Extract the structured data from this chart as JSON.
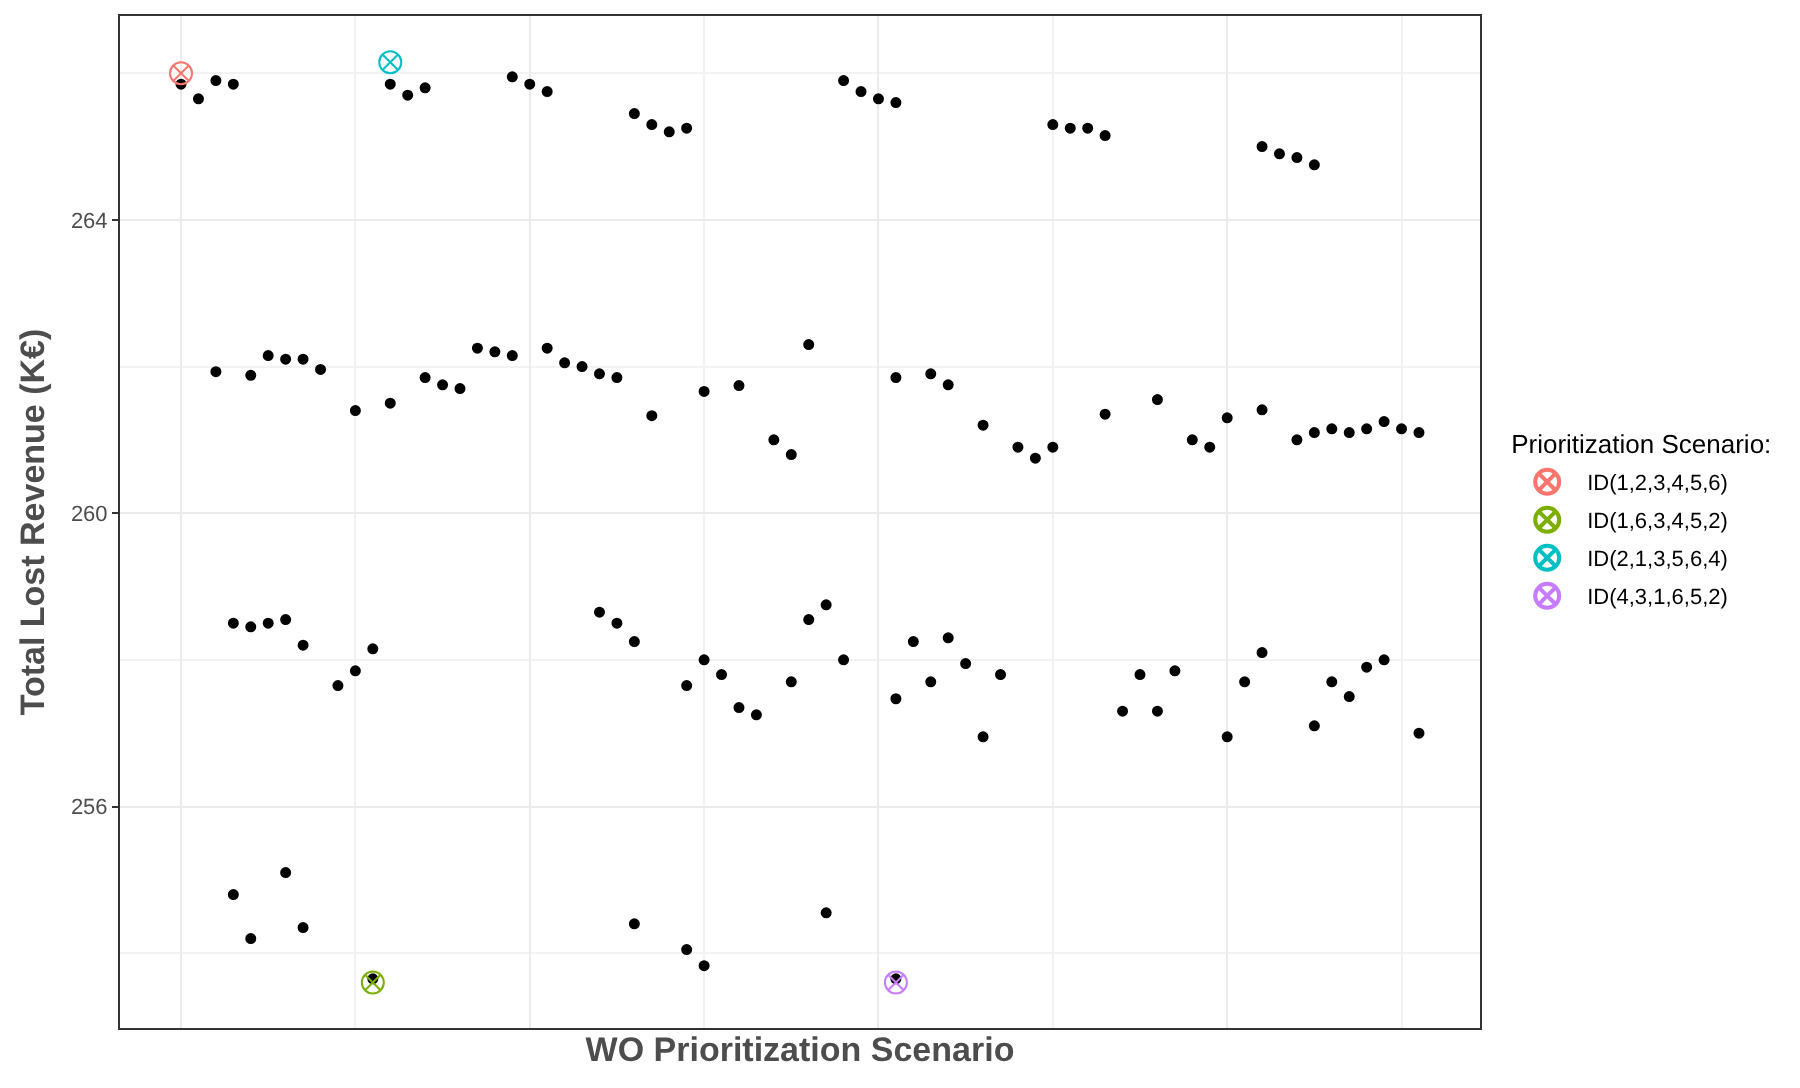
{
  "chart_data": {
    "type": "scatter",
    "xlabel": "WO Prioritization Scenario",
    "ylabel": "Total Lost Revenue (K€)",
    "legend_title": "Prioritization Scenario:",
    "categories": [
      null,
      null,
      null,
      null,
      null,
      null,
      null,
      null,
      null,
      null,
      null,
      null,
      null,
      null,
      null,
      null,
      null,
      null,
      null,
      null,
      null,
      null,
      null,
      null,
      null,
      null,
      null,
      null,
      null,
      null,
      null,
      null,
      null,
      null,
      null,
      null,
      null,
      null,
      null,
      null,
      null,
      null,
      null,
      null,
      null,
      null,
      null,
      null,
      null,
      null,
      null,
      null,
      null,
      null,
      null,
      null,
      null,
      null,
      null,
      null,
      null,
      null,
      null,
      null,
      null,
      null,
      null,
      null,
      null,
      null,
      null,
      null,
      null,
      null,
      null,
      null,
      null,
      null
    ],
    "ylim": [
      252.98,
      266.78
    ],
    "yticks": [
      {
        "value": 254,
        "label": null
      },
      256,
      {
        "value": 258,
        "label": null
      },
      260,
      {
        "value": 262,
        "label": null
      },
      264,
      {
        "value": 266,
        "label": null
      }
    ],
    "grid": true,
    "legend": "right",
    "tick_labels": "y",
    "marker": "circle",
    "series": [
      {
        "color": "#000000",
        "values": [
          null,
          null,
          null,
          265.85,
          265.65,
          265.9,
          265.85,
          null,
          null,
          null,
          null,
          null,
          null,
          null,
          null,
          265.85,
          265.7,
          265.8,
          null,
          null,
          null,
          null,
          265.95,
          265.85,
          265.75,
          null,
          null,
          null,
          null,
          265.45,
          265.3,
          265.2,
          265.25,
          null,
          null,
          null,
          null,
          null,
          null,
          null,
          null,
          265.9,
          265.75,
          265.65,
          265.6,
          null,
          null,
          null,
          null,
          null,
          null,
          null,
          null,
          265.3,
          265.25,
          265.25,
          265.15,
          null,
          null,
          null,
          null,
          null,
          null,
          null,
          null,
          265.0,
          264.9,
          264.85,
          264.75,
          null,
          null,
          null,
          null,
          null,
          null,
          null,
          null,
          null
        ]
      },
      {
        "color": "#000000",
        "values": [
          null,
          null,
          null,
          null,
          null,
          261.93,
          null,
          261.88,
          262.15,
          262.1,
          262.1,
          261.96,
          null,
          261.4,
          null,
          261.5,
          null,
          261.85,
          261.75,
          261.7,
          262.25,
          262.2,
          262.15,
          null,
          262.25,
          262.05,
          262.0,
          261.9,
          261.85,
          null,
          261.33,
          null,
          null,
          261.66,
          null,
          261.74,
          null,
          261.0,
          260.8,
          262.3,
          null,
          null,
          null,
          null,
          261.85,
          null,
          261.9,
          261.75,
          null,
          261.2,
          null,
          260.9,
          260.75,
          260.9,
          null,
          null,
          261.35,
          null,
          null,
          261.55,
          null,
          261.0,
          260.9,
          261.3,
          null,
          261.41,
          null,
          261.0,
          261.1,
          261.15,
          261.1,
          261.15,
          261.25,
          261.15,
          261.1,
          null,
          null,
          null
        ]
      },
      {
        "color": "#000000",
        "values": [
          null,
          null,
          null,
          null,
          null,
          null,
          258.5,
          258.45,
          258.5,
          258.55,
          258.2,
          null,
          257.65,
          257.85,
          258.15,
          null,
          null,
          null,
          null,
          null,
          null,
          null,
          null,
          null,
          null,
          null,
          null,
          258.65,
          258.5,
          258.25,
          null,
          null,
          257.65,
          258.0,
          257.8,
          257.35,
          257.25,
          null,
          257.7,
          258.55,
          258.75,
          258.0,
          null,
          null,
          257.47,
          258.25,
          257.7,
          258.3,
          257.95,
          256.95,
          257.8,
          null,
          null,
          null,
          null,
          null,
          null,
          257.3,
          257.8,
          257.3,
          257.85,
          null,
          null,
          256.95,
          257.7,
          258.1,
          null,
          null,
          257.1,
          257.7,
          257.5,
          257.9,
          258.0,
          null,
          257.0,
          null,
          null,
          null
        ]
      },
      {
        "color": "#000000",
        "values": [
          null,
          null,
          null,
          null,
          null,
          null,
          254.8,
          254.2,
          null,
          255.1,
          254.35,
          null,
          null,
          null,
          253.65,
          null,
          null,
          null,
          null,
          null,
          null,
          null,
          null,
          null,
          null,
          null,
          null,
          null,
          null,
          254.4,
          null,
          null,
          254.05,
          253.83,
          null,
          null,
          null,
          null,
          null,
          null,
          254.55,
          null,
          null,
          null,
          253.65,
          null,
          null,
          null,
          null,
          null,
          null,
          null,
          null,
          null,
          null,
          null,
          null,
          null,
          null,
          null,
          null,
          null,
          null,
          null,
          null,
          null,
          null,
          null,
          null,
          null,
          null,
          null,
          null,
          null,
          null,
          null,
          null,
          null
        ]
      },
      {
        "name": "ID(1,2,3,4,5,6)",
        "color": "#f8766d",
        "marker": "cross",
        "values": [
          null,
          null,
          null,
          266.0,
          null,
          null,
          null,
          null,
          null,
          null,
          null,
          null,
          null,
          null,
          null,
          null,
          null,
          null,
          null,
          null,
          null,
          null,
          null,
          null,
          null,
          null,
          null,
          null,
          null,
          null,
          null,
          null,
          null,
          null,
          null,
          null,
          null,
          null,
          null,
          null,
          null,
          null,
          null,
          null,
          null,
          null,
          null,
          null,
          null,
          null,
          null,
          null,
          null,
          null,
          null,
          null,
          null,
          null,
          null,
          null,
          null,
          null,
          null,
          null,
          null,
          null,
          null,
          null,
          null,
          null,
          null,
          null,
          null,
          null,
          null,
          null,
          null,
          null
        ]
      },
      {
        "name": "ID(1,6,3,4,5,2)",
        "color": "#7cae00",
        "marker": "cross",
        "values": [
          null,
          null,
          null,
          null,
          null,
          null,
          null,
          null,
          null,
          null,
          null,
          null,
          null,
          null,
          253.6,
          null,
          null,
          null,
          null,
          null,
          null,
          null,
          null,
          null,
          null,
          null,
          null,
          null,
          null,
          null,
          null,
          null,
          null,
          null,
          null,
          null,
          null,
          null,
          null,
          null,
          null,
          null,
          null,
          null,
          null,
          null,
          null,
          null,
          null,
          null,
          null,
          null,
          null,
          null,
          null,
          null,
          null,
          null,
          null,
          null,
          null,
          null,
          null,
          null,
          null,
          null,
          null,
          null,
          null,
          null,
          null,
          null,
          null,
          null,
          null,
          null,
          null,
          null
        ]
      },
      {
        "name": "ID(2,1,3,5,6,4)",
        "color": "#00bfc4",
        "marker": "cross",
        "values": [
          null,
          null,
          null,
          null,
          null,
          null,
          null,
          null,
          null,
          null,
          null,
          null,
          null,
          null,
          null,
          266.15,
          null,
          null,
          null,
          null,
          null,
          null,
          null,
          null,
          null,
          null,
          null,
          null,
          null,
          null,
          null,
          null,
          null,
          null,
          null,
          null,
          null,
          null,
          null,
          null,
          null,
          null,
          null,
          null,
          null,
          null,
          null,
          null,
          null,
          null,
          null,
          null,
          null,
          null,
          null,
          null,
          null,
          null,
          null,
          null,
          null,
          null,
          null,
          null,
          null,
          null,
          null,
          null,
          null,
          null,
          null,
          null,
          null,
          null,
          null,
          null,
          null,
          null
        ]
      },
      {
        "name": "ID(4,3,1,6,5,2)",
        "color": "#c77cff",
        "marker": "cross",
        "values": [
          null,
          null,
          null,
          null,
          null,
          null,
          null,
          null,
          null,
          null,
          null,
          null,
          null,
          null,
          null,
          null,
          null,
          null,
          null,
          null,
          null,
          null,
          null,
          null,
          null,
          null,
          null,
          null,
          null,
          null,
          null,
          null,
          null,
          null,
          null,
          null,
          null,
          null,
          null,
          null,
          null,
          null,
          null,
          null,
          253.6,
          null,
          null,
          null,
          null,
          null,
          null,
          null,
          null,
          null,
          null,
          null,
          null,
          null,
          null,
          null,
          null,
          null,
          null,
          null,
          null,
          null,
          null,
          null,
          null,
          null,
          null,
          null,
          null,
          null,
          null,
          null,
          null,
          null
        ]
      }
    ]
  }
}
